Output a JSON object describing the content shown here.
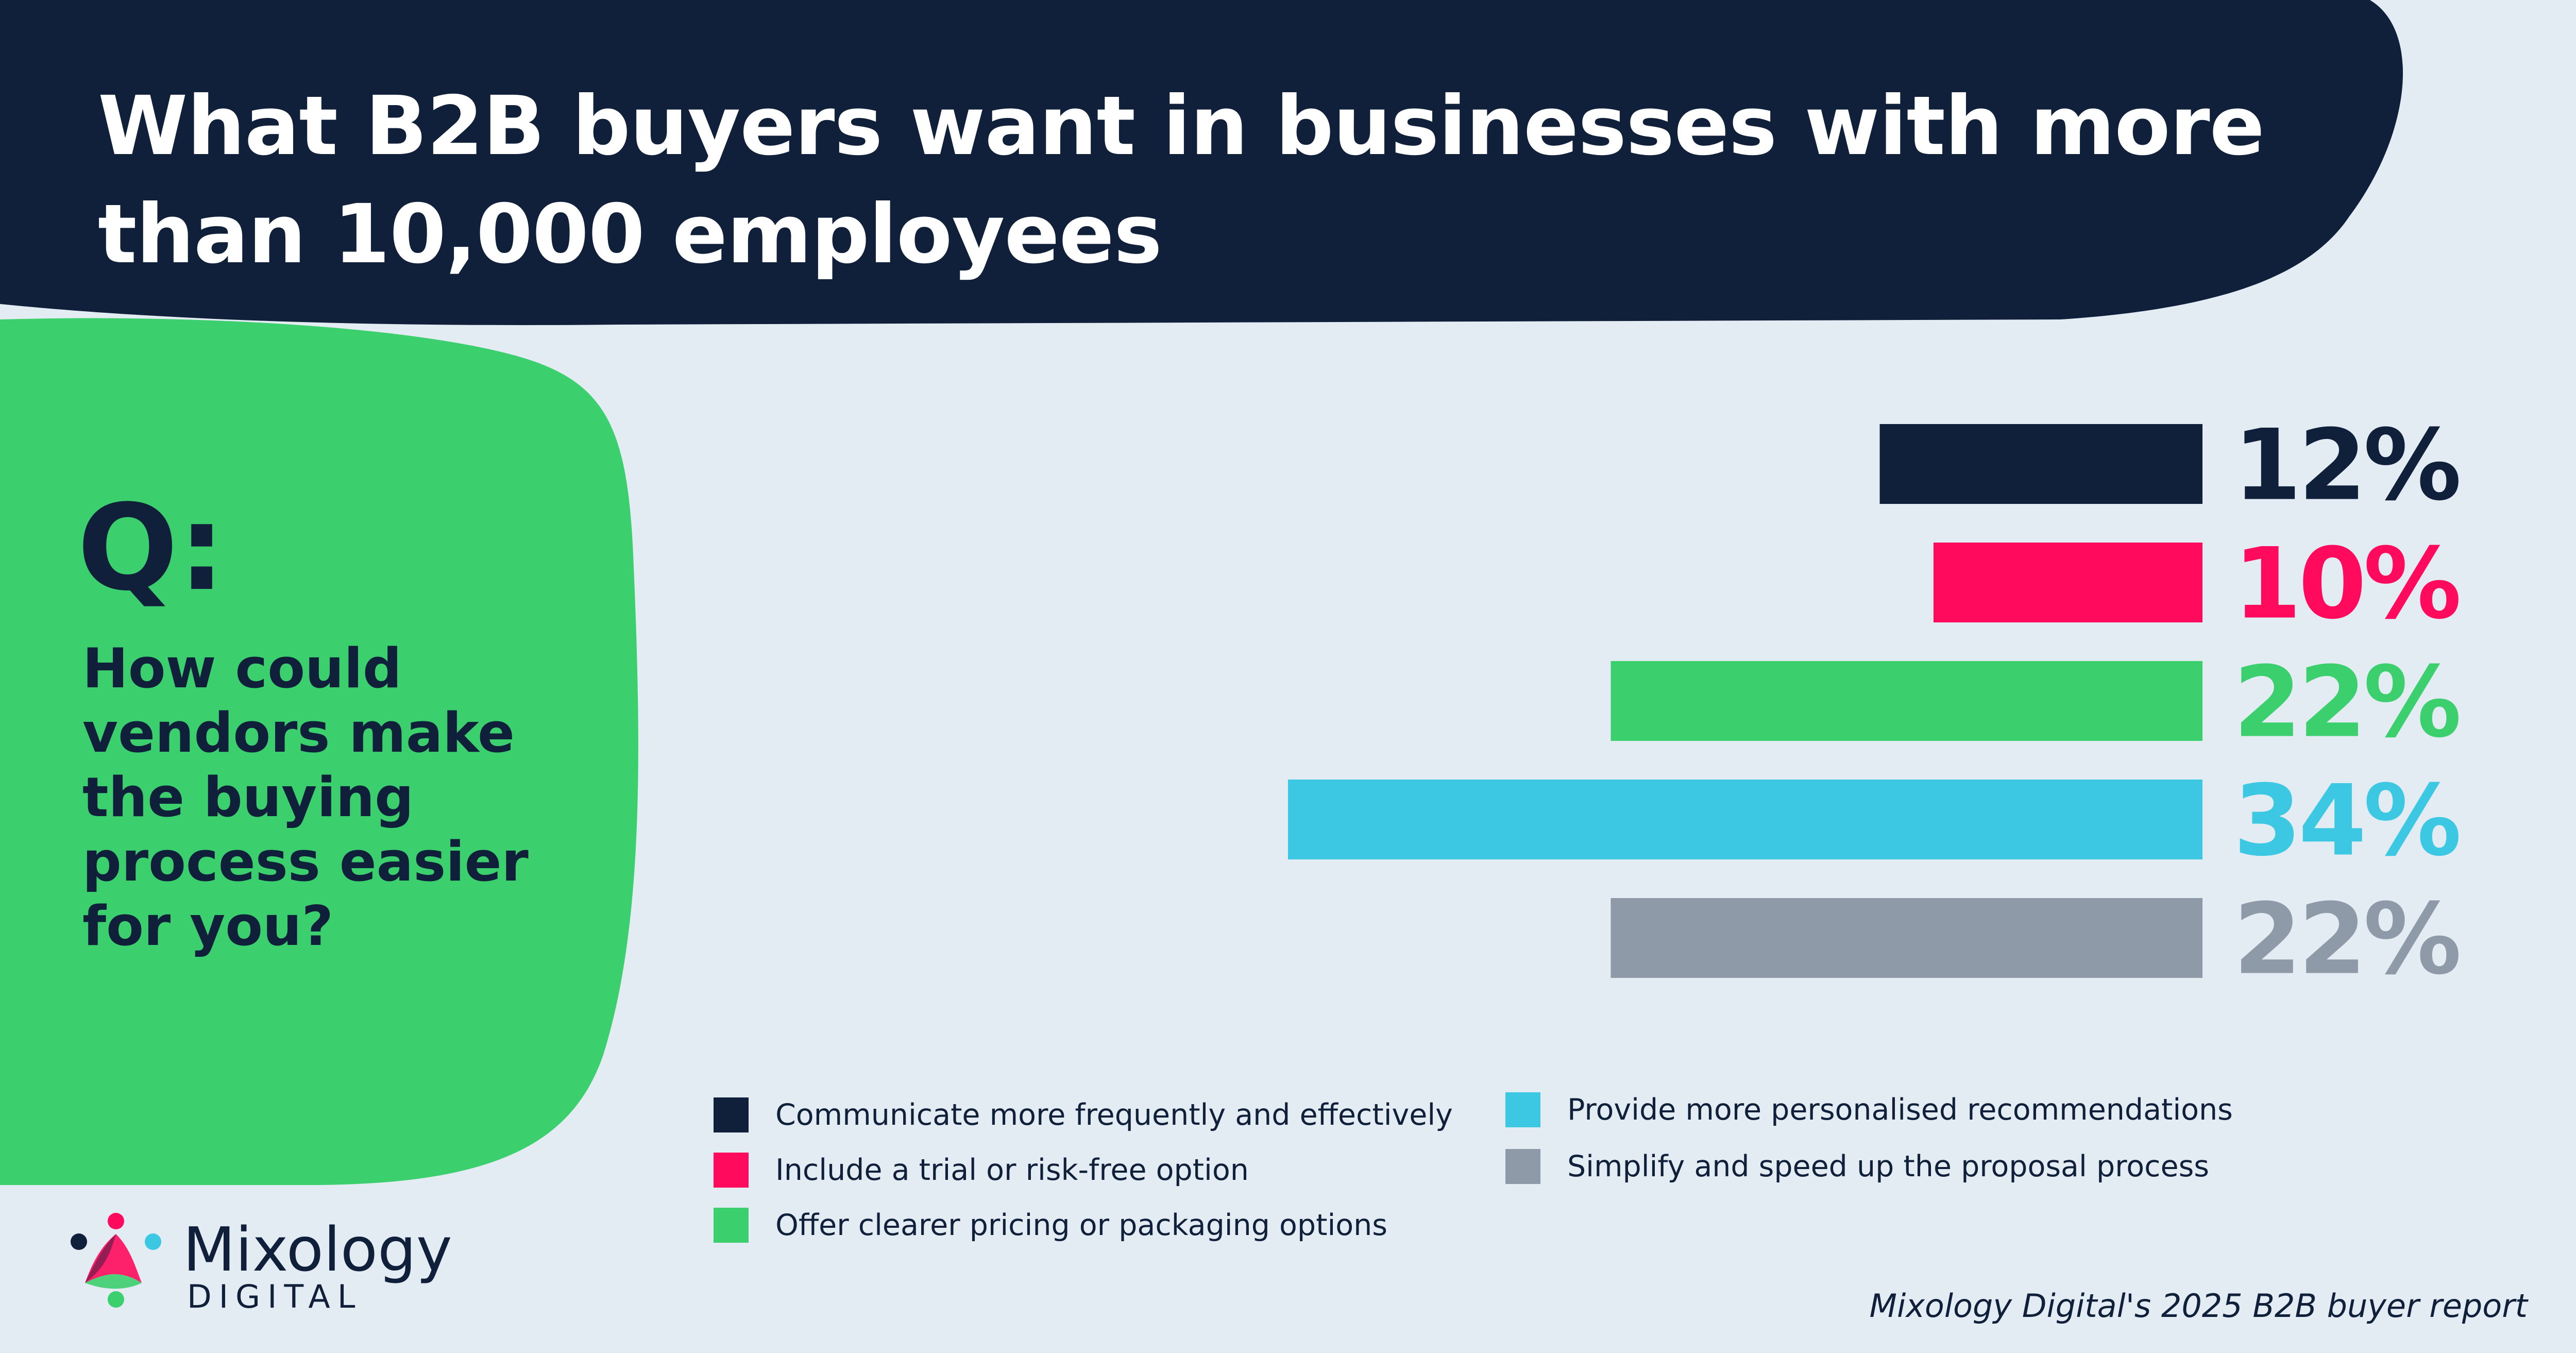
{
  "colors": {
    "background": "#e3ebf3",
    "navy": "#11203a",
    "pink": "#ff0a5c",
    "green": "#3ccf6e",
    "cyan": "#3cc8e2",
    "grey": "#8f9aa8"
  },
  "header": {
    "title_line1": "What B2B buyers want in businesses with more",
    "title_line2": "than 10,000 employees"
  },
  "question": {
    "label": "Q:",
    "lines": [
      "How could",
      "vendors make",
      "the buying",
      "process easier",
      "for you?"
    ]
  },
  "chart_data": {
    "type": "bar",
    "orientation": "horizontal",
    "title": "What B2B buyers want in businesses with more than 10,000 employees",
    "unit": "%",
    "categories": [
      "Communicate more frequently and effectively",
      "Include a trial or risk-free option",
      "Offer clearer pricing or packaging options",
      "Provide more personalised recommendations",
      "Simplify and speed up the proposal process"
    ],
    "values": [
      12,
      10,
      22,
      34,
      22
    ],
    "labels": [
      "12%",
      "10%",
      "22%",
      "34%",
      "22%"
    ],
    "colors": [
      "#11203a",
      "#ff0a5c",
      "#3ccf6e",
      "#3cc8e2",
      "#8f9aa8"
    ],
    "xlim": [
      0,
      34
    ],
    "grid": false,
    "legend_position": "bottom"
  },
  "legend": {
    "left": [
      {
        "label": "Communicate more frequently and effectively",
        "color": "#11203a"
      },
      {
        "label": "Include a trial or risk-free option",
        "color": "#ff0a5c"
      },
      {
        "label": "Offer clearer pricing or packaging options",
        "color": "#3ccf6e"
      }
    ],
    "right": [
      {
        "label": "Provide more personalised recommendations",
        "color": "#3cc8e2"
      },
      {
        "label": "Simplify and speed up the proposal process",
        "color": "#8f9aa8"
      }
    ]
  },
  "logo": {
    "name": "Mixology",
    "sub": "DIGITAL",
    "icon": "mixology-logo-icon"
  },
  "source": "Mixology Digital's 2025 B2B buyer report"
}
